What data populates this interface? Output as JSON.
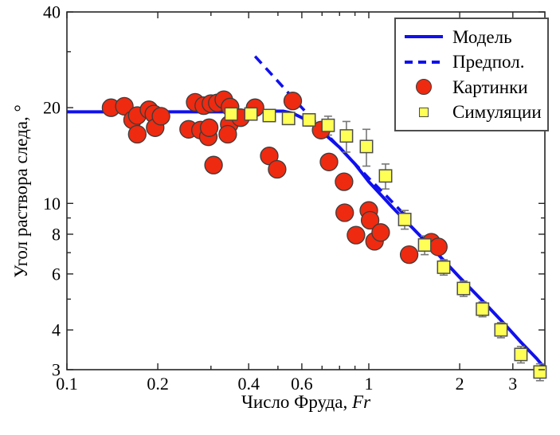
{
  "figure": {
    "background": "#ffffff",
    "frame_color": "#262626",
    "text_color": "#000000"
  },
  "colors": {
    "model_line": "#1010ee",
    "hypothesis_line": "#1010ee",
    "circle_fill": "#ee2a10",
    "circle_stroke": "#3c3c3c",
    "square_fill": "#ffff55",
    "square_stroke": "#4d4d4d",
    "error_bar": "#777777"
  },
  "axes": {
    "x": {
      "label_text": "Число Фруда, ",
      "label_symbol": "Fr",
      "scale": "log",
      "min": 0.1,
      "max": 3.83,
      "major_ticks": [
        0.1,
        0.2,
        0.4,
        0.6,
        1,
        2,
        3
      ],
      "major_tick_labels": [
        "0.1",
        "0.2",
        "0.4",
        "0.6",
        "1",
        "2",
        "3"
      ],
      "minor_ticks": [
        0.3,
        0.5,
        0.7,
        0.8,
        0.9
      ]
    },
    "y": {
      "label": "Угол раствора следа, °",
      "scale": "log",
      "min": 3,
      "max": 40,
      "major_ticks": [
        3,
        4,
        6,
        8,
        10,
        20,
        40
      ],
      "major_tick_labels": [
        "3",
        "4",
        "6",
        "8",
        "10",
        "20",
        "40"
      ],
      "minor_ticks": [
        5,
        7,
        9,
        30
      ]
    }
  },
  "legend": {
    "items": [
      {
        "label": "Модель",
        "marker": "line-solid"
      },
      {
        "label": "Предпол.",
        "marker": "line-dashed"
      },
      {
        "label": "Картинки",
        "marker": "circle"
      },
      {
        "label": "Симуляции",
        "marker": "square"
      }
    ]
  },
  "chart_data": {
    "type": "scatter",
    "title": "",
    "xlabel": "Число Фруда, Fr",
    "ylabel": "Угол раствора следа, °",
    "x_scale": "log",
    "y_scale": "log",
    "xlim": [
      0.1,
      3.83
    ],
    "ylim": [
      3,
      40
    ],
    "grid": false,
    "legend_position": "upper right",
    "series": [
      {
        "name": "Модель",
        "type": "line",
        "style": "solid",
        "points": [
          [
            0.1,
            19.4
          ],
          [
            0.4,
            19.4
          ],
          [
            0.47,
            19.5
          ],
          [
            0.52,
            19.5
          ],
          [
            0.56,
            19.2
          ],
          [
            0.6,
            18.6
          ],
          [
            0.65,
            17.8
          ],
          [
            0.7,
            16.8
          ],
          [
            0.8,
            15.0
          ],
          [
            0.9,
            13.3
          ],
          [
            1.0,
            11.7
          ],
          [
            1.2,
            9.7
          ],
          [
            1.4,
            8.35
          ],
          [
            1.7,
            6.9
          ],
          [
            2.0,
            5.85
          ],
          [
            2.4,
            4.9
          ],
          [
            2.8,
            4.2
          ],
          [
            3.2,
            3.65
          ],
          [
            3.6,
            3.25
          ],
          [
            3.83,
            3.03
          ]
        ]
      },
      {
        "name": "Предпол.",
        "type": "line",
        "style": "dashed",
        "points": [
          [
            0.42,
            29.0
          ],
          [
            0.5,
            24.2
          ],
          [
            0.6,
            20.0
          ],
          [
            0.7,
            17.1
          ],
          [
            0.85,
            14.1
          ],
          [
            1.0,
            12.0
          ],
          [
            1.15,
            10.5
          ],
          [
            1.3,
            9.3
          ]
        ]
      },
      {
        "name": "Картинки",
        "type": "scatter",
        "marker": "circle",
        "points": [
          [
            0.14,
            20.0
          ],
          [
            0.155,
            20.2
          ],
          [
            0.165,
            18.3
          ],
          [
            0.171,
            18.9
          ],
          [
            0.171,
            16.5
          ],
          [
            0.187,
            19.7
          ],
          [
            0.194,
            19.1
          ],
          [
            0.196,
            17.3
          ],
          [
            0.205,
            18.8
          ],
          [
            0.253,
            17.1
          ],
          [
            0.266,
            20.8
          ],
          [
            0.277,
            17.0
          ],
          [
            0.284,
            20.3
          ],
          [
            0.294,
            16.2
          ],
          [
            0.296,
            17.3
          ],
          [
            0.3,
            20.6
          ],
          [
            0.315,
            20.7
          ],
          [
            0.331,
            21.2
          ],
          [
            0.345,
            17.7
          ],
          [
            0.347,
            20.1
          ],
          [
            0.376,
            18.6
          ],
          [
            0.306,
            13.2
          ],
          [
            0.341,
            16.5
          ],
          [
            0.42,
            20.0
          ],
          [
            0.468,
            14.1
          ],
          [
            0.497,
            12.8
          ],
          [
            0.56,
            21.0
          ],
          [
            0.695,
            17.0
          ],
          [
            0.738,
            13.5
          ],
          [
            0.828,
            11.7
          ],
          [
            0.832,
            9.35
          ],
          [
            0.907,
            7.95
          ],
          [
            1.0,
            9.5
          ],
          [
            1.01,
            8.85
          ],
          [
            1.045,
            7.6
          ],
          [
            1.095,
            8.1
          ],
          [
            1.36,
            6.9
          ],
          [
            1.61,
            7.55
          ],
          [
            1.7,
            7.3
          ]
        ]
      },
      {
        "name": "Симуляции",
        "type": "scatter",
        "marker": "square",
        "points": [
          [
            0.35,
            19.1
          ],
          [
            0.407,
            19.1
          ],
          [
            0.468,
            18.9
          ],
          [
            0.542,
            18.5
          ],
          [
            0.634,
            18.3
          ],
          [
            0.733,
            17.6
          ],
          [
            0.843,
            16.3
          ],
          [
            0.982,
            15.1
          ],
          [
            1.136,
            12.2
          ],
          [
            1.315,
            8.9
          ],
          [
            1.531,
            7.4
          ],
          [
            1.771,
            6.3
          ],
          [
            2.06,
            5.4
          ],
          [
            2.38,
            4.65
          ],
          [
            2.74,
            4.0
          ],
          [
            3.19,
            3.35
          ],
          [
            3.69,
            2.95
          ]
        ],
        "errors": [
          0.3,
          0.3,
          0.3,
          0.4,
          0.8,
          1.2,
          1.8,
          2.0,
          1.1,
          0.6,
          0.5,
          0.35,
          0.3,
          0.25,
          0.22,
          0.2,
          0.18
        ]
      }
    ]
  }
}
